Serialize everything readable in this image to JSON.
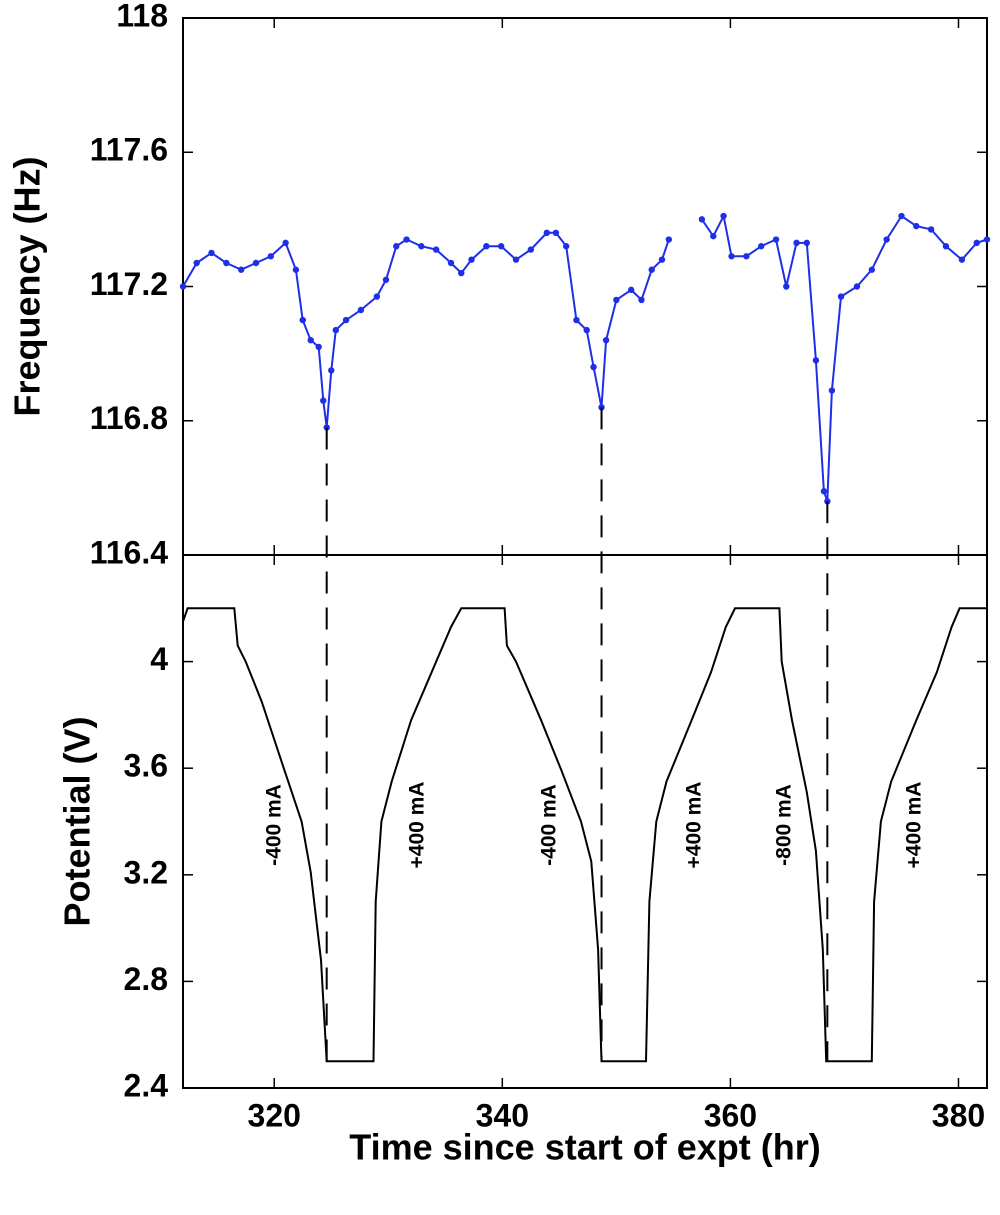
{
  "chart_data": [
    {
      "type": "line",
      "ylabel": "Frequency (Hz)",
      "xlim": [
        312,
        382.5
      ],
      "xticks": [
        320,
        340,
        360,
        380
      ],
      "ylim": [
        116.4,
        118
      ],
      "yticks": [
        116.4,
        116.8,
        117.2,
        117.6,
        118
      ],
      "x": [
        312.0,
        313.2,
        314.5,
        315.8,
        317.1,
        318.4,
        319.7,
        321.0,
        321.9,
        322.5,
        323.2,
        323.9,
        324.3,
        324.6,
        325.0,
        325.4,
        326.3,
        327.6,
        329.0,
        329.8,
        330.7,
        331.6,
        332.9,
        334.2,
        335.5,
        336.4,
        337.3,
        338.6,
        339.9,
        341.2,
        342.5,
        343.9,
        344.7,
        345.6,
        346.5,
        347.4,
        348.0,
        348.7,
        349.1,
        350.0,
        351.3,
        352.2,
        353.1,
        354.0,
        354.6,
        356.0,
        357.5,
        358.5,
        359.4,
        360.1,
        361.4,
        362.7,
        364.0,
        364.9,
        365.8,
        366.7,
        367.5,
        368.2,
        368.5,
        368.9,
        369.7,
        371.1,
        372.4,
        373.7,
        375.0,
        376.3,
        377.6,
        378.9,
        380.3,
        381.6,
        382.5
      ],
      "series": [
        {
          "color": "#1f2fe8",
          "markers": true,
          "values": [
            117.2,
            117.27,
            117.3,
            117.27,
            117.25,
            117.27,
            117.29,
            117.33,
            117.25,
            117.1,
            117.04,
            117.02,
            116.86,
            116.78,
            116.95,
            117.07,
            117.1,
            117.13,
            117.17,
            117.22,
            117.32,
            117.34,
            117.32,
            117.31,
            117.27,
            117.24,
            117.28,
            117.32,
            117.32,
            117.28,
            117.31,
            117.36,
            117.36,
            117.32,
            117.1,
            117.07,
            116.96,
            116.84,
            117.04,
            117.16,
            117.19,
            117.16,
            117.25,
            117.28,
            117.34,
            null,
            117.4,
            117.35,
            117.41,
            117.29,
            117.29,
            117.32,
            117.34,
            117.2,
            117.33,
            117.33,
            116.98,
            116.59,
            116.56,
            116.89,
            117.17,
            117.2,
            117.25,
            117.34,
            117.41,
            117.38,
            117.37,
            117.32,
            117.28,
            117.33,
            117.34
          ]
        }
      ],
      "vlines": [
        324.6,
        348.7,
        368.5
      ]
    },
    {
      "type": "line",
      "ylabel": "Potential (V)",
      "xlabel": "Time since start of expt (hr)",
      "xlim": [
        312,
        382.5
      ],
      "xticks": [
        320,
        340,
        360,
        380
      ],
      "ylim": [
        2.4,
        4.4
      ],
      "yticks": [
        2.4,
        2.8,
        3.2,
        3.6,
        4
      ],
      "x": [
        312.0,
        312.4,
        316.5,
        316.8,
        317.5,
        318.9,
        320.6,
        322.4,
        323.2,
        324.1,
        324.6,
        328.7,
        328.9,
        329.4,
        330.3,
        332.0,
        333.8,
        335.5,
        336.4,
        340.2,
        340.4,
        341.2,
        343.4,
        345.2,
        346.9,
        347.8,
        348.4,
        348.7,
        352.6,
        352.9,
        353.5,
        354.4,
        356.6,
        358.3,
        359.6,
        360.4,
        364.3,
        364.5,
        365.4,
        366.7,
        367.5,
        368.1,
        368.4,
        372.4,
        372.6,
        373.2,
        374.1,
        376.3,
        378.1,
        379.4,
        380.1,
        382.5
      ],
      "series": [
        {
          "color": "#000000",
          "markers": false,
          "values": [
            4.15,
            4.2,
            4.2,
            4.06,
            4.0,
            3.85,
            3.63,
            3.4,
            3.21,
            2.88,
            2.5,
            2.5,
            3.1,
            3.4,
            3.55,
            3.78,
            3.96,
            4.13,
            4.2,
            4.2,
            4.06,
            4.0,
            3.78,
            3.59,
            3.4,
            3.25,
            2.92,
            2.5,
            2.5,
            3.1,
            3.4,
            3.55,
            3.78,
            3.96,
            4.13,
            4.2,
            4.2,
            4.0,
            3.78,
            3.51,
            3.29,
            2.92,
            2.5,
            2.5,
            3.1,
            3.4,
            3.55,
            3.78,
            3.96,
            4.13,
            4.2,
            4.2
          ]
        }
      ],
      "annotations": [
        "-400 mA",
        "+400 mA",
        "-400 mA",
        "+400 mA",
        "-800 mA",
        "+400 mA"
      ]
    }
  ]
}
